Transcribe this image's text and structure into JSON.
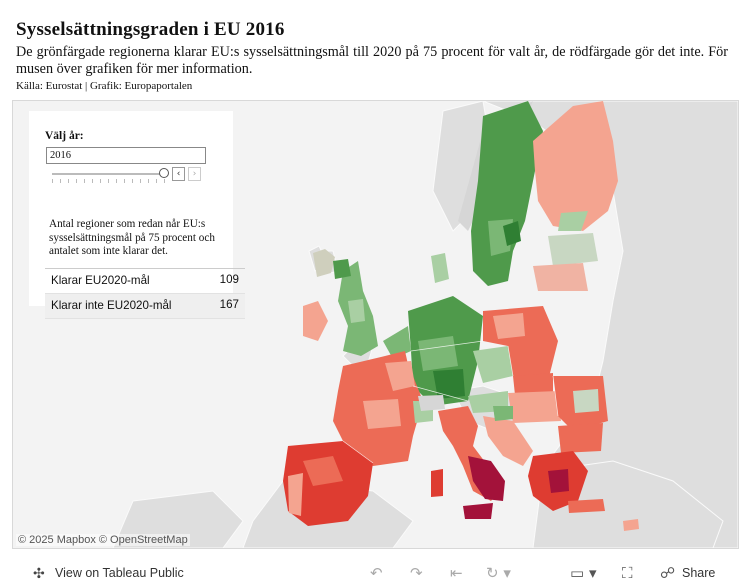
{
  "header": {
    "title": "Sysselsättningsgraden i EU 2016",
    "subtitle": "De grönfärgade regionerna klarar EU:s sysselsättningsmål till 2020 på 75 procent för valt år, de rödfärgade gör det inte. För musen över grafiken för mer information.",
    "source": "Källa: Eurostat | Grafik: Europaportalen"
  },
  "year_filter": {
    "label": "Välj år:",
    "value": "2016",
    "prev_icon": "chevron-left-icon",
    "next_icon": "chevron-right-icon"
  },
  "info": {
    "text": "Antal regioner som redan når EU:s sysselsättningsmål på 75 procent och antalet som inte klarar det.",
    "rows": [
      {
        "label": "Klarar EU2020-mål",
        "value": "109"
      },
      {
        "label": "Klarar inte EU2020-mål",
        "value": "167"
      }
    ]
  },
  "map": {
    "attribution": "© 2025 Mapbox  © OpenStreetMap",
    "colors": {
      "water": "#f3f3f3",
      "land": "#dedede",
      "green_strong": "#4f9a4b",
      "green_mid": "#7bb775",
      "green_light": "#a9cfa3",
      "red_light": "#f4a490",
      "red_mid": "#ec6b56",
      "red_strong": "#de3c31",
      "crimson": "#a3123a"
    }
  },
  "footer": {
    "view_label": "View on Tableau Public",
    "share_label": "Share",
    "icons": [
      "tableau-logo-icon",
      "undo-icon",
      "redo-icon",
      "revert-icon",
      "refresh-icon",
      "download-icon",
      "fullscreen-icon",
      "share-icon"
    ]
  }
}
